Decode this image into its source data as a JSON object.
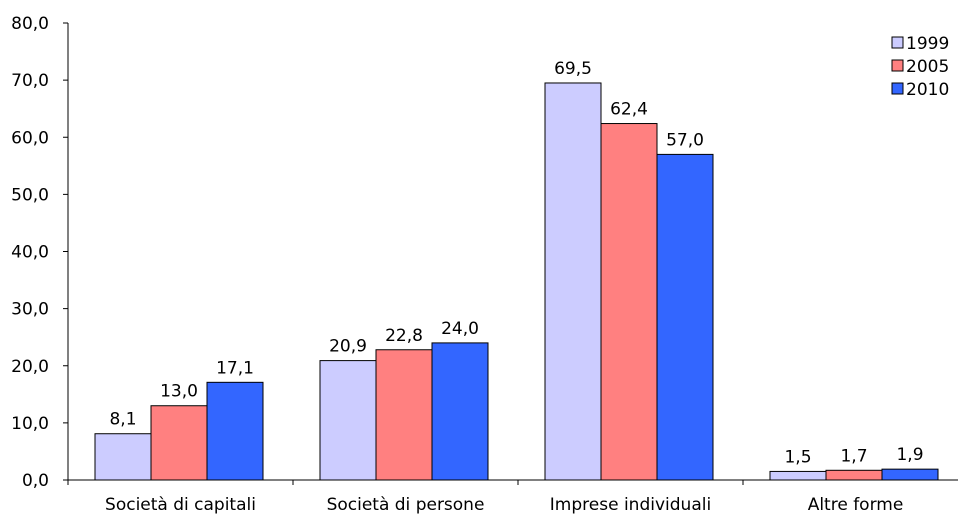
{
  "chart_data": {
    "type": "bar",
    "categories": [
      "Società di capitali",
      "Società di persone",
      "Imprese individuali",
      "Altre forme"
    ],
    "series": [
      {
        "name": "1999",
        "color": "#ccccff",
        "values": [
          8.1,
          20.9,
          69.5,
          1.5
        ],
        "labels": [
          "8,1",
          "20,9",
          "69,5",
          "1,5"
        ]
      },
      {
        "name": "2005",
        "color": "#ff8080",
        "values": [
          13.0,
          22.8,
          62.4,
          1.7
        ],
        "labels": [
          "13,0",
          "22,8",
          "62,4",
          "1,7"
        ]
      },
      {
        "name": "2010",
        "color": "#3366ff",
        "values": [
          17.1,
          24.0,
          57.0,
          1.9
        ],
        "labels": [
          "17,1",
          "24,0",
          "57,0",
          "1,9"
        ]
      }
    ],
    "yticks": [
      "0,0",
      "10,0",
      "20,0",
      "30,0",
      "40,0",
      "50,0",
      "60,0",
      "70,0",
      "80,0"
    ],
    "ylim": [
      0,
      80
    ],
    "grid": false,
    "legend_position": "top-right",
    "title": "",
    "xlabel": "",
    "ylabel": ""
  }
}
